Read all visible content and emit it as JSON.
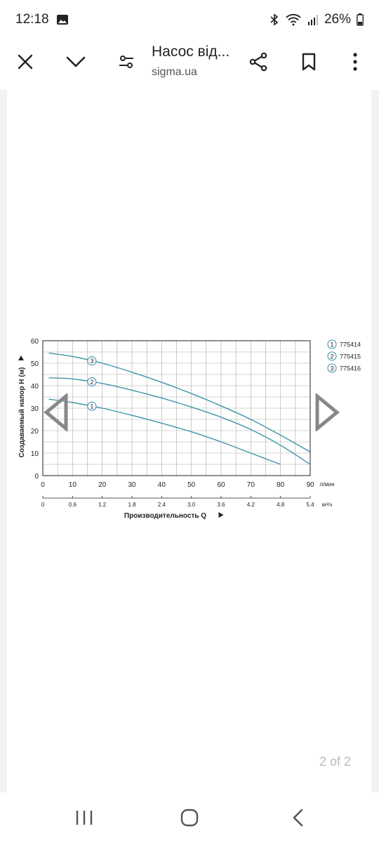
{
  "status_bar": {
    "time": "12:18",
    "battery": "26%"
  },
  "toolbar": {
    "title": "Насос від...",
    "subtitle": "sigma.ua"
  },
  "page_indicator": "2 of 2",
  "chart_data": {
    "type": "line",
    "ylabel": "Создаваемый напор H (м)",
    "xlabel": "Производительность Q",
    "x_unit_primary": "л/мин",
    "x_unit_secondary": "м³/ч",
    "xlim": [
      0,
      90
    ],
    "ylim": [
      0,
      60
    ],
    "x_ticks": [
      "0",
      "10",
      "20",
      "30",
      "40",
      "50",
      "60",
      "70",
      "80",
      "90"
    ],
    "x2_ticks": [
      "0",
      "0.6",
      "1.2",
      "1.8",
      "2.4",
      "3.0",
      "3.6",
      "4.2",
      "4.8",
      "5.4"
    ],
    "y_ticks": [
      "0",
      "10",
      "20",
      "30",
      "40",
      "50",
      "60"
    ],
    "grid": true,
    "legend_position": "right",
    "series": [
      {
        "marker": "1",
        "name": "775414",
        "x": [
          2,
          10,
          20,
          30,
          40,
          50,
          60,
          70,
          80
        ],
        "y": [
          34,
          32.5,
          30,
          26.8,
          23.3,
          19.5,
          15,
          10,
          5
        ]
      },
      {
        "marker": "2",
        "name": "775415",
        "x": [
          2,
          10,
          20,
          30,
          40,
          50,
          60,
          70,
          80,
          90
        ],
        "y": [
          43.5,
          43,
          41,
          38,
          34.5,
          30.5,
          26,
          20.5,
          13.5,
          5
        ]
      },
      {
        "marker": "3",
        "name": "775416",
        "x": [
          2,
          10,
          20,
          30,
          40,
          50,
          60,
          70,
          80,
          90
        ],
        "y": [
          54.5,
          53,
          50,
          46,
          41.5,
          36.5,
          31,
          25,
          18,
          10.5
        ]
      }
    ]
  },
  "colors": {
    "curve": "#3f96a8",
    "grid": "#aaaaaa",
    "axis": "#222222"
  }
}
